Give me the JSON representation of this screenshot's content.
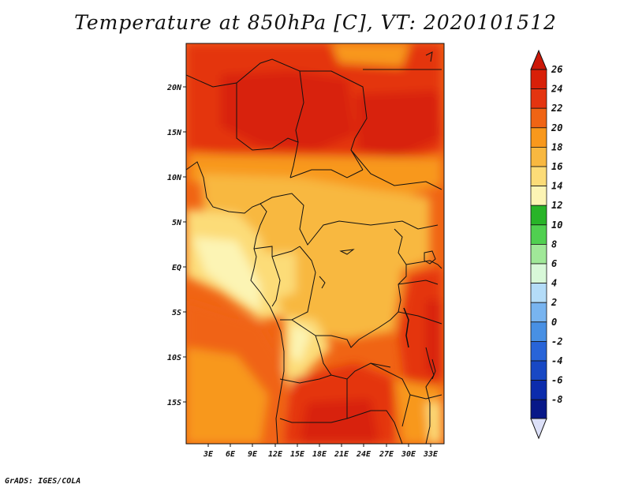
{
  "title": "Temperature at 850hPa [C], VT: 2020101512",
  "credit": "GrADS: IGES/COLA",
  "map": {
    "x_ticks": [
      "3E",
      "6E",
      "9E",
      "12E",
      "15E",
      "18E",
      "21E",
      "24E",
      "27E",
      "30E",
      "33E"
    ],
    "y_ticks": [
      "20N",
      "15N",
      "10N",
      "5N",
      "EQ",
      "5S",
      "10S",
      "15S"
    ]
  },
  "colorbar": {
    "levels": [
      {
        "label": "26",
        "color": "#d82008"
      },
      {
        "label": "24",
        "color": "#e43410"
      },
      {
        "label": "22",
        "color": "#f06414"
      },
      {
        "label": "20",
        "color": "#f8981c"
      },
      {
        "label": "18",
        "color": "#f8b840"
      },
      {
        "label": "16",
        "color": "#fcdc78"
      },
      {
        "label": "14",
        "color": "#fcf4b4"
      },
      {
        "label": "12",
        "color": "#28b428"
      },
      {
        "label": "10",
        "color": "#50d050"
      },
      {
        "label": "8",
        "color": "#a0e898"
      },
      {
        "label": "6",
        "color": "#d8f8d8"
      },
      {
        "label": "4",
        "color": "#b4dcf8"
      },
      {
        "label": "2",
        "color": "#78b4f0"
      },
      {
        "label": "0",
        "color": "#4890e4"
      },
      {
        "label": "-2",
        "color": "#2864d8"
      },
      {
        "label": "-4",
        "color": "#1848c4"
      },
      {
        "label": "-6",
        "color": "#0c2cac"
      },
      {
        "label": "-8",
        "color": "#081888"
      }
    ],
    "top_arrow_color": "#cc1808",
    "bottom_arrow_color": "#dce0f8"
  }
}
